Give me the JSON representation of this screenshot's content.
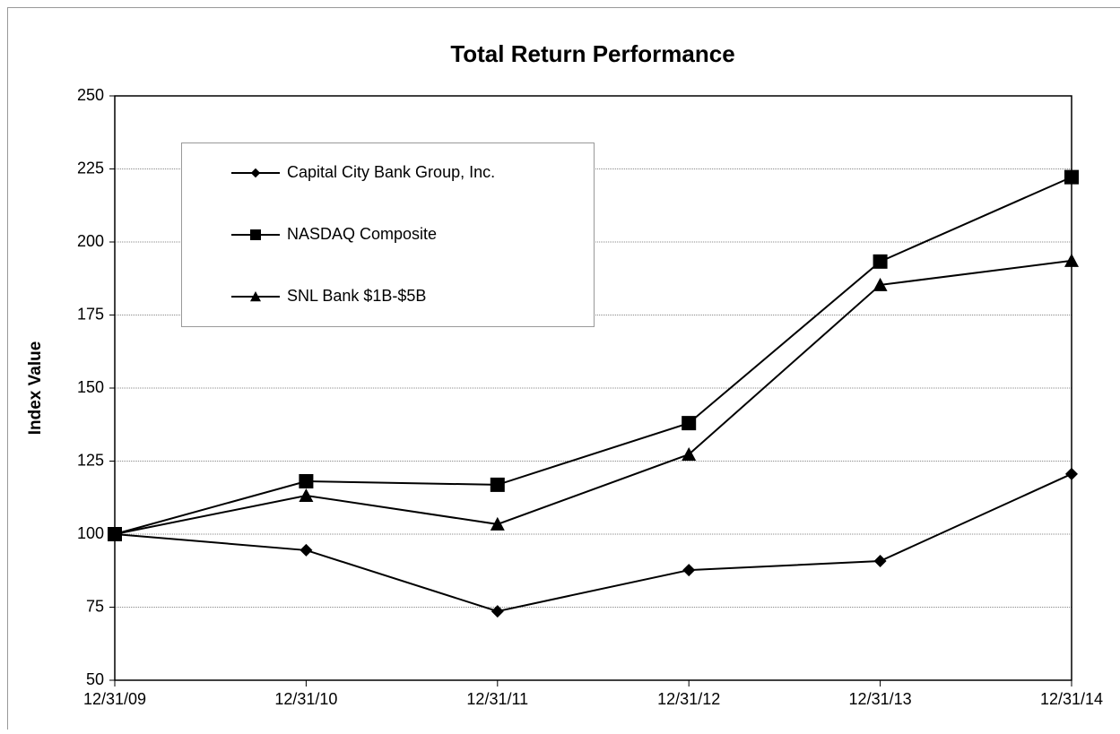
{
  "chart_data": {
    "type": "line",
    "title": "Total Return Performance",
    "y_label": "Index Value",
    "categories": [
      "12/31/09",
      "12/31/10",
      "12/31/11",
      "12/31/12",
      "12/31/13",
      "12/31/14"
    ],
    "series": [
      {
        "name": "Capital City Bank Group, Inc.",
        "color": "#000000",
        "marker": "diamond",
        "values": [
          100,
          94.5,
          73.6,
          87.7,
          90.8,
          120.6
        ]
      },
      {
        "name": "NASDAQ Composite",
        "color": "#000000",
        "marker": "square",
        "values": [
          100,
          118.1,
          116.9,
          138.0,
          193.3,
          222.2
        ]
      },
      {
        "name": "SNL Bank $1B-$5B",
        "color": "#000000",
        "marker": "triangle",
        "values": [
          100,
          113.2,
          103.4,
          127.3,
          185.3,
          193.6
        ]
      }
    ],
    "ylim": [
      50,
      250
    ],
    "yticks": [
      50,
      75,
      100,
      125,
      150,
      175,
      200,
      225,
      250
    ],
    "grid": true
  }
}
